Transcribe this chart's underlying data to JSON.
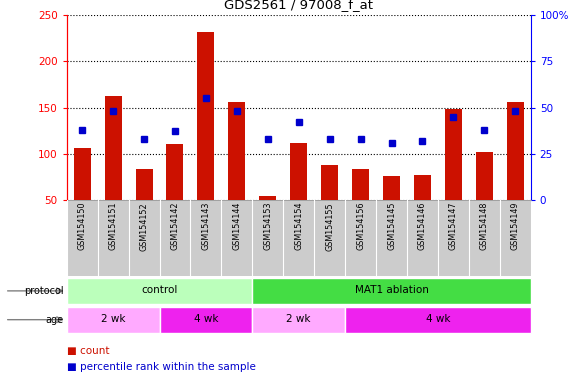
{
  "title": "GDS2561 / 97008_f_at",
  "samples": [
    "GSM154150",
    "GSM154151",
    "GSM154152",
    "GSM154142",
    "GSM154143",
    "GSM154144",
    "GSM154153",
    "GSM154154",
    "GSM154155",
    "GSM154156",
    "GSM154145",
    "GSM154146",
    "GSM154147",
    "GSM154148",
    "GSM154149"
  ],
  "counts": [
    106,
    162,
    83,
    110,
    232,
    156,
    54,
    111,
    88,
    83,
    76,
    77,
    148,
    102,
    156
  ],
  "percentile_ranks": [
    38,
    48,
    33,
    37,
    55,
    48,
    33,
    42,
    33,
    33,
    31,
    32,
    45,
    38,
    48
  ],
  "left_ylim": [
    50,
    250
  ],
  "right_ylim": [
    0,
    100
  ],
  "left_yticks": [
    50,
    100,
    150,
    200,
    250
  ],
  "right_yticks": [
    0,
    25,
    50,
    75,
    100
  ],
  "right_yticklabels": [
    "0",
    "25",
    "50",
    "75",
    "100%"
  ],
  "bar_color": "#cc1100",
  "marker_color": "#0000cc",
  "protocol_groups": [
    {
      "label": "control",
      "start": 0,
      "end": 6,
      "color": "#bbffbb"
    },
    {
      "label": "MAT1 ablation",
      "start": 6,
      "end": 15,
      "color": "#44dd44"
    }
  ],
  "age_light_color": "#ffaaff",
  "age_dark_color": "#ee22ee",
  "age_groups": [
    {
      "label": "2 wk",
      "start": 0,
      "end": 3,
      "dark": false
    },
    {
      "label": "4 wk",
      "start": 3,
      "end": 6,
      "dark": true
    },
    {
      "label": "2 wk",
      "start": 6,
      "end": 9,
      "dark": false
    },
    {
      "label": "4 wk",
      "start": 9,
      "end": 15,
      "dark": true
    }
  ],
  "xticklabel_bg": "#cccccc",
  "xticklabel_border": "#aaaaaa",
  "legend_count_color": "#cc1100",
  "legend_pct_color": "#0000cc"
}
